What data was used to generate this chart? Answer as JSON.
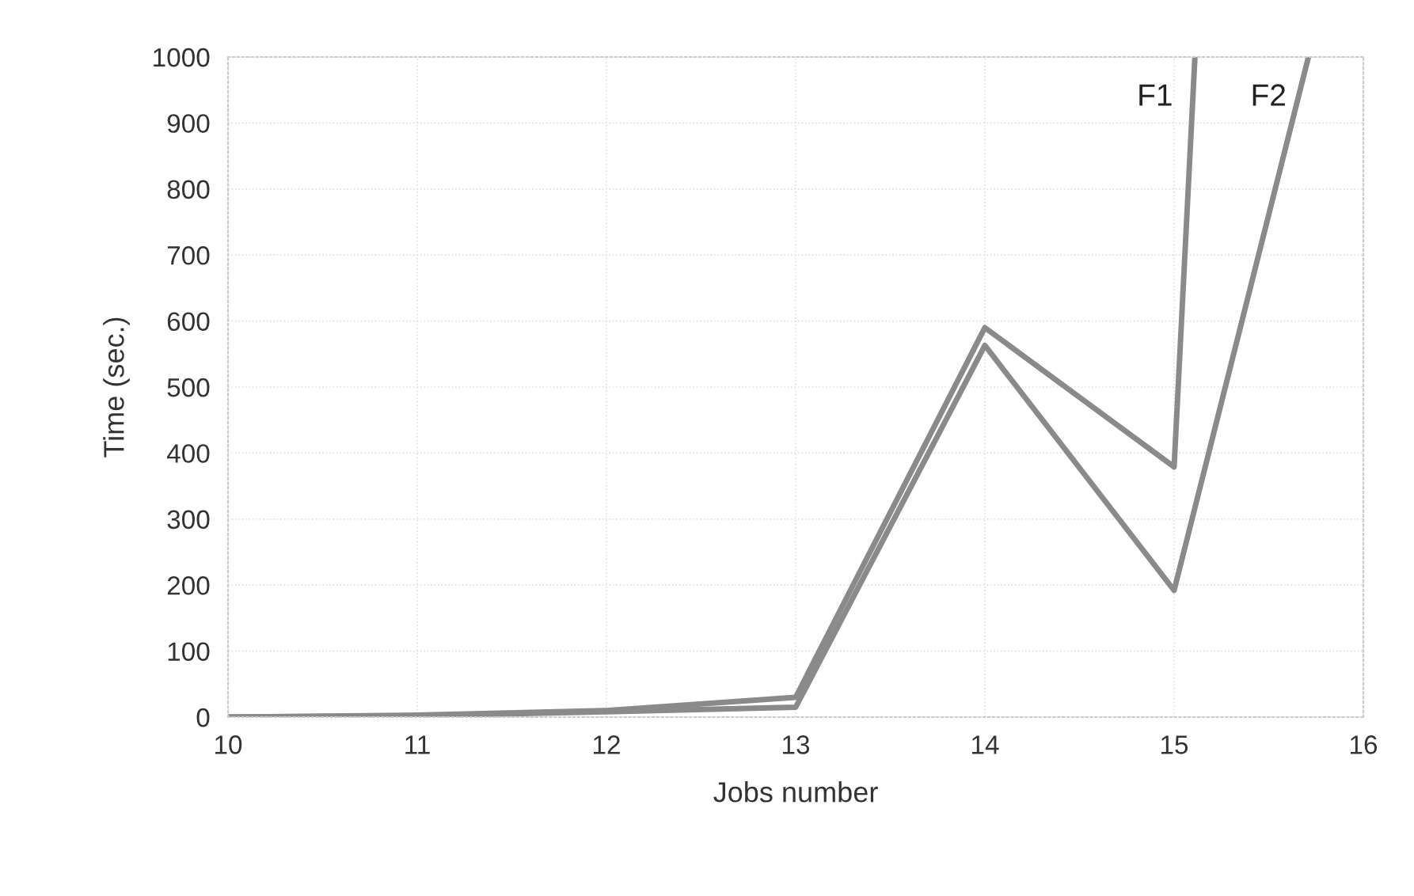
{
  "chart_data": {
    "type": "line",
    "xlabel": "Jobs number",
    "ylabel": "Time (sec.)",
    "xlim": [
      10,
      16
    ],
    "xticks": [
      10,
      11,
      12,
      13,
      14,
      15,
      16
    ],
    "ylim": [
      0,
      1000
    ],
    "yticks": [
      0,
      100,
      200,
      300,
      400,
      500,
      600,
      700,
      800,
      900,
      1000
    ],
    "grid": true,
    "marker": "none",
    "line_style": "solid",
    "legend": false,
    "series": [
      {
        "name": "F1",
        "color": "#8a8a8a",
        "x": [
          10,
          11,
          12,
          13,
          14,
          15,
          15.11
        ],
        "values": [
          0,
          3,
          10,
          30,
          590,
          379,
          1000
        ]
      },
      {
        "name": "F2",
        "color": "#8a8a8a",
        "x": [
          10,
          11,
          12,
          13,
          14,
          15,
          15.71
        ],
        "values": [
          0,
          2,
          8,
          15,
          563,
          192,
          1000
        ]
      }
    ]
  }
}
